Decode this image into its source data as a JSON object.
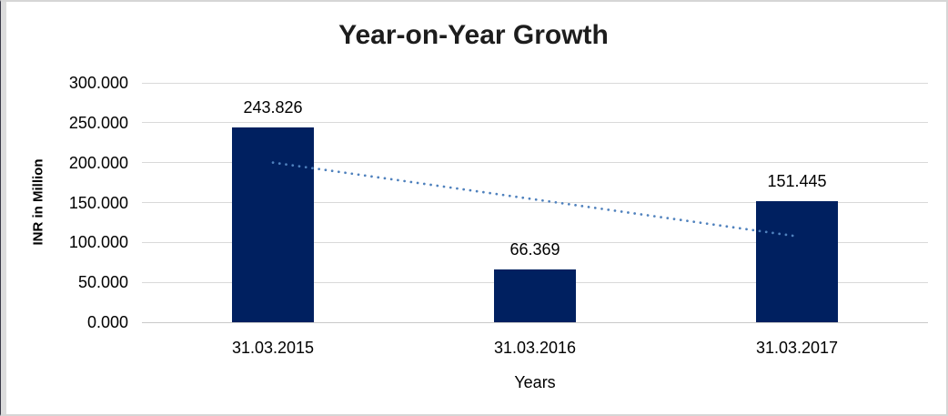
{
  "chart_data": {
    "type": "bar",
    "title": "Year-on-Year Growth",
    "categories": [
      "31.03.2015",
      "31.03.2016",
      "31.03.2017"
    ],
    "values": [
      243.826,
      66.369,
      151.445
    ],
    "data_labels": [
      "243.826",
      "66.369",
      "151.445"
    ],
    "xlabel": "Years",
    "ylabel": "INR in Million",
    "ylim": [
      0,
      300
    ],
    "ytick_interval": 50,
    "ytick_labels": [
      "0.000",
      "50.000",
      "100.000",
      "150.000",
      "200.000",
      "250.000",
      "300.000"
    ],
    "grid": true,
    "legend_position": "none",
    "bar_color": "#002060",
    "gridline_color": "#d9d9d9",
    "trendline": {
      "type": "linear",
      "style": "dotted",
      "color": "#4F81BD",
      "start_value": 200.07,
      "end_value": 107.69
    }
  }
}
